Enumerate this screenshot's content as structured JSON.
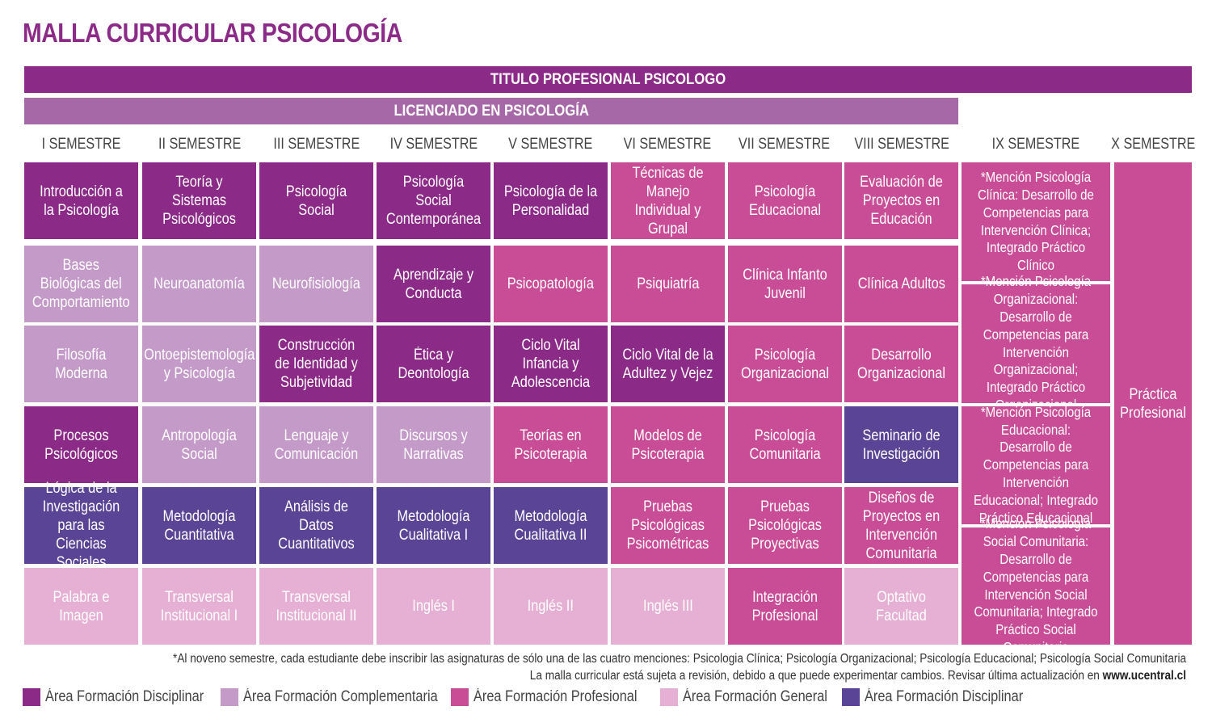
{
  "title": "MALLA CURRICULAR PSICOLOGÍA",
  "titulo_profesional": "TITULO PROFESIONAL PSICOLOGO",
  "licenciado": "LICENCIADO EN PSICOLOGÍA",
  "colors": {
    "disciplinar": "#8c2a88",
    "complementaria": "#c39ac8",
    "profesional": "#c94c96",
    "general": "#e5b0d3",
    "disciplinar_indigo": "#5a4495"
  },
  "semesters": [
    "I SEMESTRE",
    "II SEMESTRE",
    "III SEMESTRE",
    "IV SEMESTRE",
    "V SEMESTRE",
    "VI SEMESTRE",
    "VII SEMESTRE",
    "VIII SEMESTRE",
    "IX SEMESTRE",
    "X SEMESTRE"
  ],
  "courses": [
    [
      {
        "text": "Introducción a la Psicología",
        "area": "disciplinar"
      },
      {
        "text": "Bases Biológicas del Comportamiento",
        "area": "complementaria"
      },
      {
        "text": "Filosofía Moderna",
        "area": "complementaria"
      },
      {
        "text": "Procesos Psicológicos",
        "area": "disciplinar"
      },
      {
        "text": "Lógica de la Investigación para las Ciencias Sociales",
        "area": "disciplinar_indigo"
      },
      {
        "text": "Palabra e Imagen",
        "area": "general"
      }
    ],
    [
      {
        "text": "Teoría y Sistemas Psicológicos",
        "area": "disciplinar"
      },
      {
        "text": "Neuroanatomía",
        "area": "complementaria"
      },
      {
        "text": "Ontoepistemología y Psicología",
        "area": "complementaria"
      },
      {
        "text": "Antropología Social",
        "area": "complementaria"
      },
      {
        "text": "Metodología Cuantitativa",
        "area": "disciplinar_indigo"
      },
      {
        "text": "Transversal Institucional I",
        "area": "general"
      }
    ],
    [
      {
        "text": "Psicología Social",
        "area": "disciplinar"
      },
      {
        "text": "Neurofisiología",
        "area": "complementaria"
      },
      {
        "text": "Construcción de Identidad y Subjetividad",
        "area": "disciplinar"
      },
      {
        "text": "Lenguaje y Comunicación",
        "area": "complementaria"
      },
      {
        "text": "Análisis de Datos Cuantitativos",
        "area": "disciplinar_indigo"
      },
      {
        "text": "Transversal Institucional II",
        "area": "general"
      }
    ],
    [
      {
        "text": "Psicología Social Contemporánea",
        "area": "disciplinar"
      },
      {
        "text": "Aprendizaje y Conducta",
        "area": "disciplinar"
      },
      {
        "text": "Ética y Deontología",
        "area": "disciplinar"
      },
      {
        "text": "Discursos y Narrativas",
        "area": "complementaria"
      },
      {
        "text": "Metodología Cualitativa I",
        "area": "disciplinar_indigo"
      },
      {
        "text": "Inglés I",
        "area": "general"
      }
    ],
    [
      {
        "text": "Psicología de la Personalidad",
        "area": "disciplinar"
      },
      {
        "text": "Psicopatología",
        "area": "profesional"
      },
      {
        "text": "Ciclo Vital Infancia y Adolescencia",
        "area": "disciplinar"
      },
      {
        "text": "Teorías en Psicoterapia",
        "area": "profesional"
      },
      {
        "text": "Metodología Cualitativa II",
        "area": "disciplinar_indigo"
      },
      {
        "text": "Inglés II",
        "area": "general"
      }
    ],
    [
      {
        "text": "Técnicas de Manejo Individual y Grupal",
        "area": "profesional"
      },
      {
        "text": "Psiquiatría",
        "area": "profesional"
      },
      {
        "text": "Ciclo Vital de la Adultez y Vejez",
        "area": "disciplinar"
      },
      {
        "text": "Modelos de Psicoterapia",
        "area": "profesional"
      },
      {
        "text": "Pruebas Psicológicas Psicométricas",
        "area": "profesional"
      },
      {
        "text": "Inglés III",
        "area": "general"
      }
    ],
    [
      {
        "text": "Psicología Educacional",
        "area": "profesional"
      },
      {
        "text": "Clínica Infanto Juvenil",
        "area": "profesional"
      },
      {
        "text": "Psicología Organizacional",
        "area": "profesional"
      },
      {
        "text": "Psicología Comunitaria",
        "area": "profesional"
      },
      {
        "text": "Pruebas Psicológicas Proyectivas",
        "area": "profesional"
      },
      {
        "text": "Integración Profesional",
        "area": "profesional"
      }
    ],
    [
      {
        "text": "Evaluación de Proyectos en Educación",
        "area": "profesional"
      },
      {
        "text": "Clínica Adultos",
        "area": "profesional"
      },
      {
        "text": "Desarrollo Organizacional",
        "area": "profesional"
      },
      {
        "text": "Seminario de Investigación",
        "area": "disciplinar_indigo"
      },
      {
        "text": "Diseños de Proyectos en Intervención Comunitaria",
        "area": "profesional"
      },
      {
        "text": "Optativo Facultad",
        "area": "general"
      }
    ]
  ],
  "menciones": [
    "*Mención Psicología Clínica: Desarrollo de Competencias para Intervención Clínica; Integrado Práctico Clínico",
    "*Mención Psicología Organizacional: Desarrollo de Competencias para Intervención Organizacional; Integrado Práctico Organizacional",
    "*Mención Psicología Educacional: Desarrollo de Competencias para Intervención Educacional; Integrado Práctico Educacional",
    "*Mención Psicología Social Comunitaria: Desarrollo de Competencias para Intervención Social Comunitaria; Integrado Práctico Social Comunitaria"
  ],
  "practica": "Práctica Profesional",
  "note1": "*Al noveno semestre, cada estudiante debe inscribir las asignaturas de sólo una de las cuatro menciones: Psicologia Clínica; Psicología Organizacional; Psicología Educacional; Psicología Social Comunitaria",
  "note2_text": "La malla curricular está sujeta a revisión, debido a que puede experimentar cambios. Revisar última actualización en ",
  "note2_link": "www.ucentral.cl",
  "legend": [
    {
      "label": "Área Formación Disciplinar",
      "area": "disciplinar"
    },
    {
      "label": "Área Formación Complementaria",
      "area": "complementaria"
    },
    {
      "label": "Área Formación Profesional",
      "area": "profesional"
    },
    {
      "label": "Área Formación General",
      "area": "general"
    },
    {
      "label": "Área Formación Disciplinar",
      "area": "disciplinar_indigo"
    }
  ]
}
